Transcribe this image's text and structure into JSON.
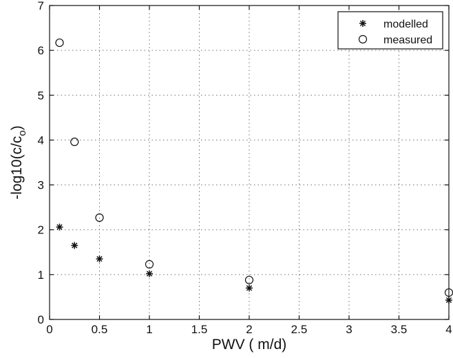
{
  "chart_data": {
    "type": "scatter",
    "title": "",
    "xlabel": "PWV ( m/d)",
    "ylabel_main": "-log10(c/c",
    "ylabel_sub": "o",
    "ylabel_end": ")",
    "xlim": [
      0,
      4
    ],
    "ylim": [
      0,
      7
    ],
    "xticks": [
      0,
      0.5,
      1,
      1.5,
      2,
      2.5,
      3,
      3.5,
      4
    ],
    "xtick_labels": [
      "0",
      "0.5",
      "1",
      "1.5",
      "2",
      "2.5",
      "3",
      "3.5",
      "4"
    ],
    "yticks": [
      0,
      1,
      2,
      3,
      4,
      5,
      6,
      7
    ],
    "ytick_labels": [
      "0",
      "1",
      "2",
      "3",
      "4",
      "5",
      "6",
      "7"
    ],
    "grid": true,
    "legend_position": "top-right",
    "series": [
      {
        "name": "modelled",
        "marker": "star",
        "color": "#111111",
        "points": [
          {
            "x": 0.1,
            "y": 2.06
          },
          {
            "x": 0.25,
            "y": 1.65
          },
          {
            "x": 0.5,
            "y": 1.35
          },
          {
            "x": 1.0,
            "y": 1.02
          },
          {
            "x": 2.0,
            "y": 0.7
          },
          {
            "x": 4.0,
            "y": 0.43
          }
        ]
      },
      {
        "name": "measured",
        "marker": "circle",
        "color": "#111111",
        "points": [
          {
            "x": 0.1,
            "y": 6.17
          },
          {
            "x": 0.25,
            "y": 3.96
          },
          {
            "x": 0.5,
            "y": 2.27
          },
          {
            "x": 1.0,
            "y": 1.23
          },
          {
            "x": 2.0,
            "y": 0.88
          },
          {
            "x": 4.0,
            "y": 0.6
          }
        ]
      }
    ]
  }
}
